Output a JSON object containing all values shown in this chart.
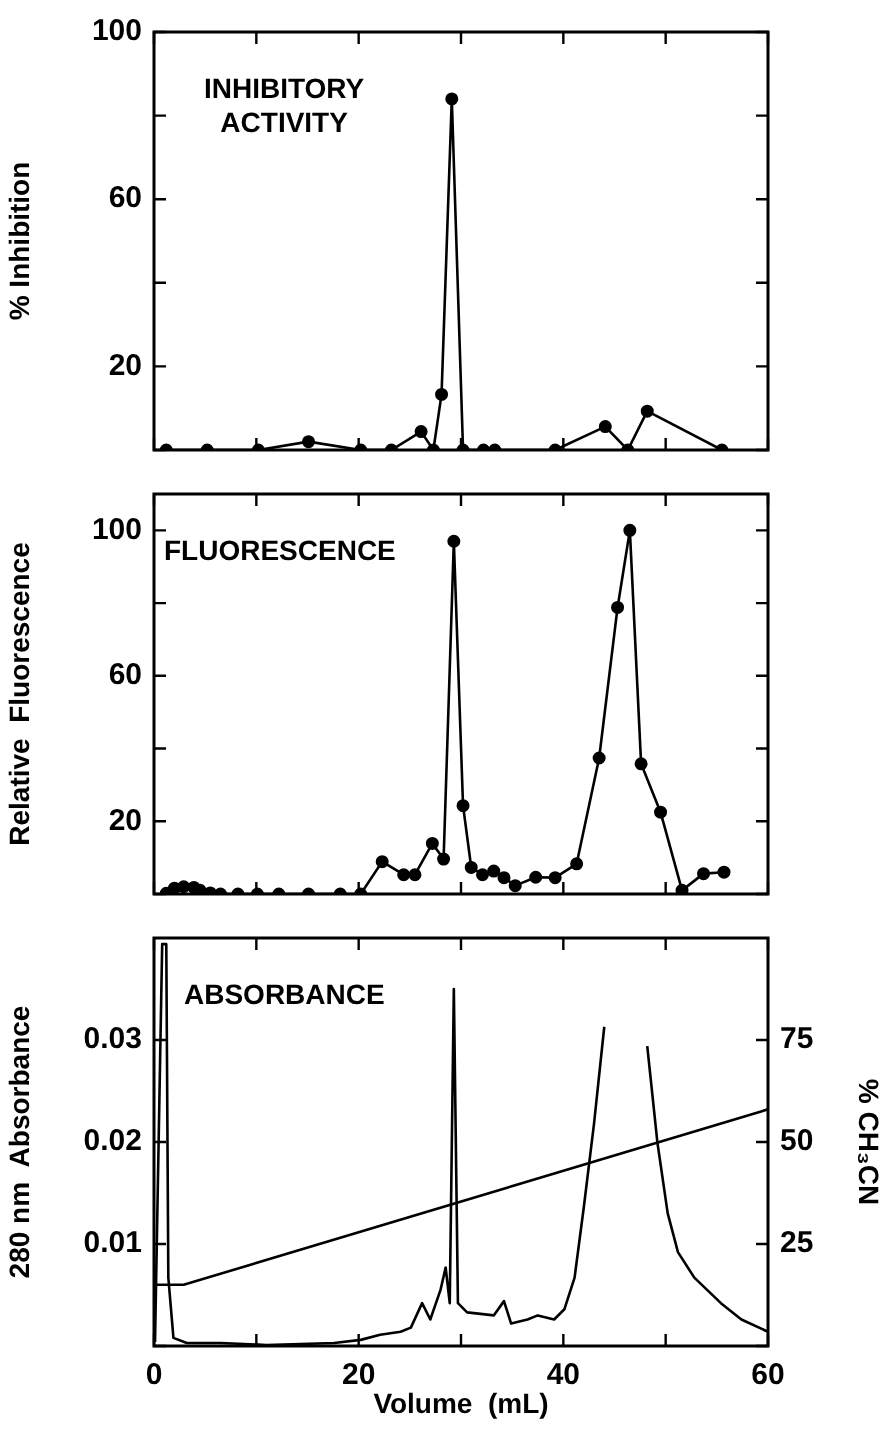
{
  "chart_data": [
    {
      "type": "line",
      "ylabel": "% Inhibition",
      "annotations": [
        "INHIBITORY ACTIVITY"
      ],
      "xlim": [
        0,
        60
      ],
      "xticks": [
        0,
        {
          "value": 10,
          "label": null
        },
        20,
        {
          "value": 30,
          "label": null
        },
        40,
        {
          "value": 50,
          "label": null
        },
        60
      ],
      "ylim": [
        0,
        100
      ],
      "yticks": [
        {
          "value": 0,
          "label": null
        },
        20,
        {
          "value": 40,
          "label": null
        },
        60,
        {
          "value": 80,
          "label": null
        },
        100
      ],
      "tick_labels": "y",
      "grid": false,
      "legend": false,
      "marker": "circle",
      "line_style": "solid",
      "series": [
        {
          "color": "#000000",
          "x": [
            1.2,
            5.2,
            10.2,
            15.1,
            20.2,
            23.2,
            26.1,
            27.3,
            28.1,
            29.1,
            30.2,
            32.2,
            33.3,
            39.2,
            44.1,
            46.3,
            48.2,
            55.5
          ],
          "values": [
            0,
            0,
            0,
            2,
            0,
            0,
            4.4,
            0,
            13.3,
            84,
            0,
            0,
            0,
            0,
            5.6,
            0,
            9.3,
            0
          ]
        }
      ]
    },
    {
      "type": "line",
      "ylabel": "Relative  Fluorescence",
      "annotations": [
        "FLUORESCENCE"
      ],
      "xlim": [
        0,
        60
      ],
      "xticks": [
        0,
        {
          "value": 10,
          "label": null
        },
        20,
        {
          "value": 30,
          "label": null
        },
        40,
        {
          "value": 50,
          "label": null
        },
        60
      ],
      "ylim": [
        0,
        110
      ],
      "yticks": [
        {
          "value": 0,
          "label": null
        },
        20,
        {
          "value": 40,
          "label": null
        },
        60,
        {
          "value": 80,
          "label": null
        },
        100
      ],
      "tick_labels": "y",
      "grid": false,
      "legend": false,
      "marker": "circle",
      "line_style": "solid",
      "series": [
        {
          "color": "#000000",
          "x": [
            1.2,
            2.0,
            2.9,
            3.9,
            4.5,
            5.5,
            6.5,
            8.2,
            10.1,
            12.2,
            15.1,
            18.2,
            20.2,
            22.3,
            24.4,
            25.5,
            27.2,
            28.3,
            29.3,
            30.2,
            31.0,
            32.1,
            33.2,
            34.2,
            35.3,
            37.3,
            39.2,
            41.3,
            43.5,
            45.3,
            46.5,
            47.6,
            49.5,
            51.6,
            53.7,
            55.7
          ],
          "values": [
            0.2,
            1.6,
            2,
            1.8,
            1,
            0.3,
            0,
            0,
            0,
            0,
            0,
            0,
            0,
            8.9,
            5.3,
            5.3,
            13.9,
            9.6,
            97,
            24.3,
            7.3,
            5.3,
            6.3,
            4.5,
            2.3,
            4.6,
            4.5,
            8.3,
            37.4,
            78.8,
            100,
            35.8,
            22.5,
            1,
            5.6,
            6
          ]
        }
      ]
    },
    {
      "type": "line",
      "xlabel": "Volume  (mL)",
      "ylabel": "280 nm  Absorbance",
      "y2label": "% CH₃CN",
      "annotations": [
        "ABSORBANCE"
      ],
      "xlim": [
        0,
        60
      ],
      "xticks": [
        0,
        {
          "value": 10,
          "label": null
        },
        20,
        {
          "value": 30,
          "label": null
        },
        40,
        {
          "value": 50,
          "label": null
        },
        60
      ],
      "ylim": [
        0,
        0.04
      ],
      "yticks": [
        {
          "value": 0,
          "label": null
        },
        0.01,
        0.02,
        0.03
      ],
      "y2lim": [
        0,
        100
      ],
      "y2ticks": [
        {
          "value": 0,
          "label": null
        },
        25,
        50,
        75
      ],
      "grid": false,
      "legend": false,
      "marker": "none",
      "line_style": "solid",
      "series": [
        {
          "color": "#000000",
          "x": [
            0.1,
            0.8,
            1.2,
            1.4,
            1.9,
            3.2,
            6.5,
            11,
            17.6,
            20.2,
            22.1,
            24.1,
            25.1,
            26.2,
            27.0,
            28.0,
            28.5,
            28.9,
            29.3,
            29.7,
            30.6,
            33.2,
            34.2,
            34.9,
            36.5,
            37.5,
            39.1,
            40.1,
            41.1,
            42.0,
            43.0,
            44.0,
            44.6,
            46.2,
            47.6,
            48.2,
            49.2,
            50.2,
            51.2,
            52.8,
            55.4,
            57.4,
            60
          ],
          "values": [
            0.0004,
            0.0394,
            0.0394,
            0.0067,
            0.0008,
            0.0003,
            0.0003,
            0.0001,
            0.0003,
            0.0006,
            0.0011,
            0.0014,
            0.0018,
            0.0042,
            0.0026,
            0.0055,
            0.0077,
            0.0042,
            0.035,
            0.0042,
            0.0033,
            0.003,
            0.0044,
            0.0022,
            0.0026,
            0.003,
            0.0026,
            0.0036,
            0.0067,
            0.0136,
            0.0218,
            0.0313,
            null,
            null,
            null,
            0.0294,
            0.0199,
            0.013,
            0.0092,
            0.0067,
            0.0042,
            0.0026,
            0.0014
          ]
        },
        {
          "color": "#000000",
          "axis": "y2",
          "x": [
            0,
            2.9,
            60
          ],
          "values": [
            15,
            15,
            58
          ]
        }
      ]
    }
  ]
}
